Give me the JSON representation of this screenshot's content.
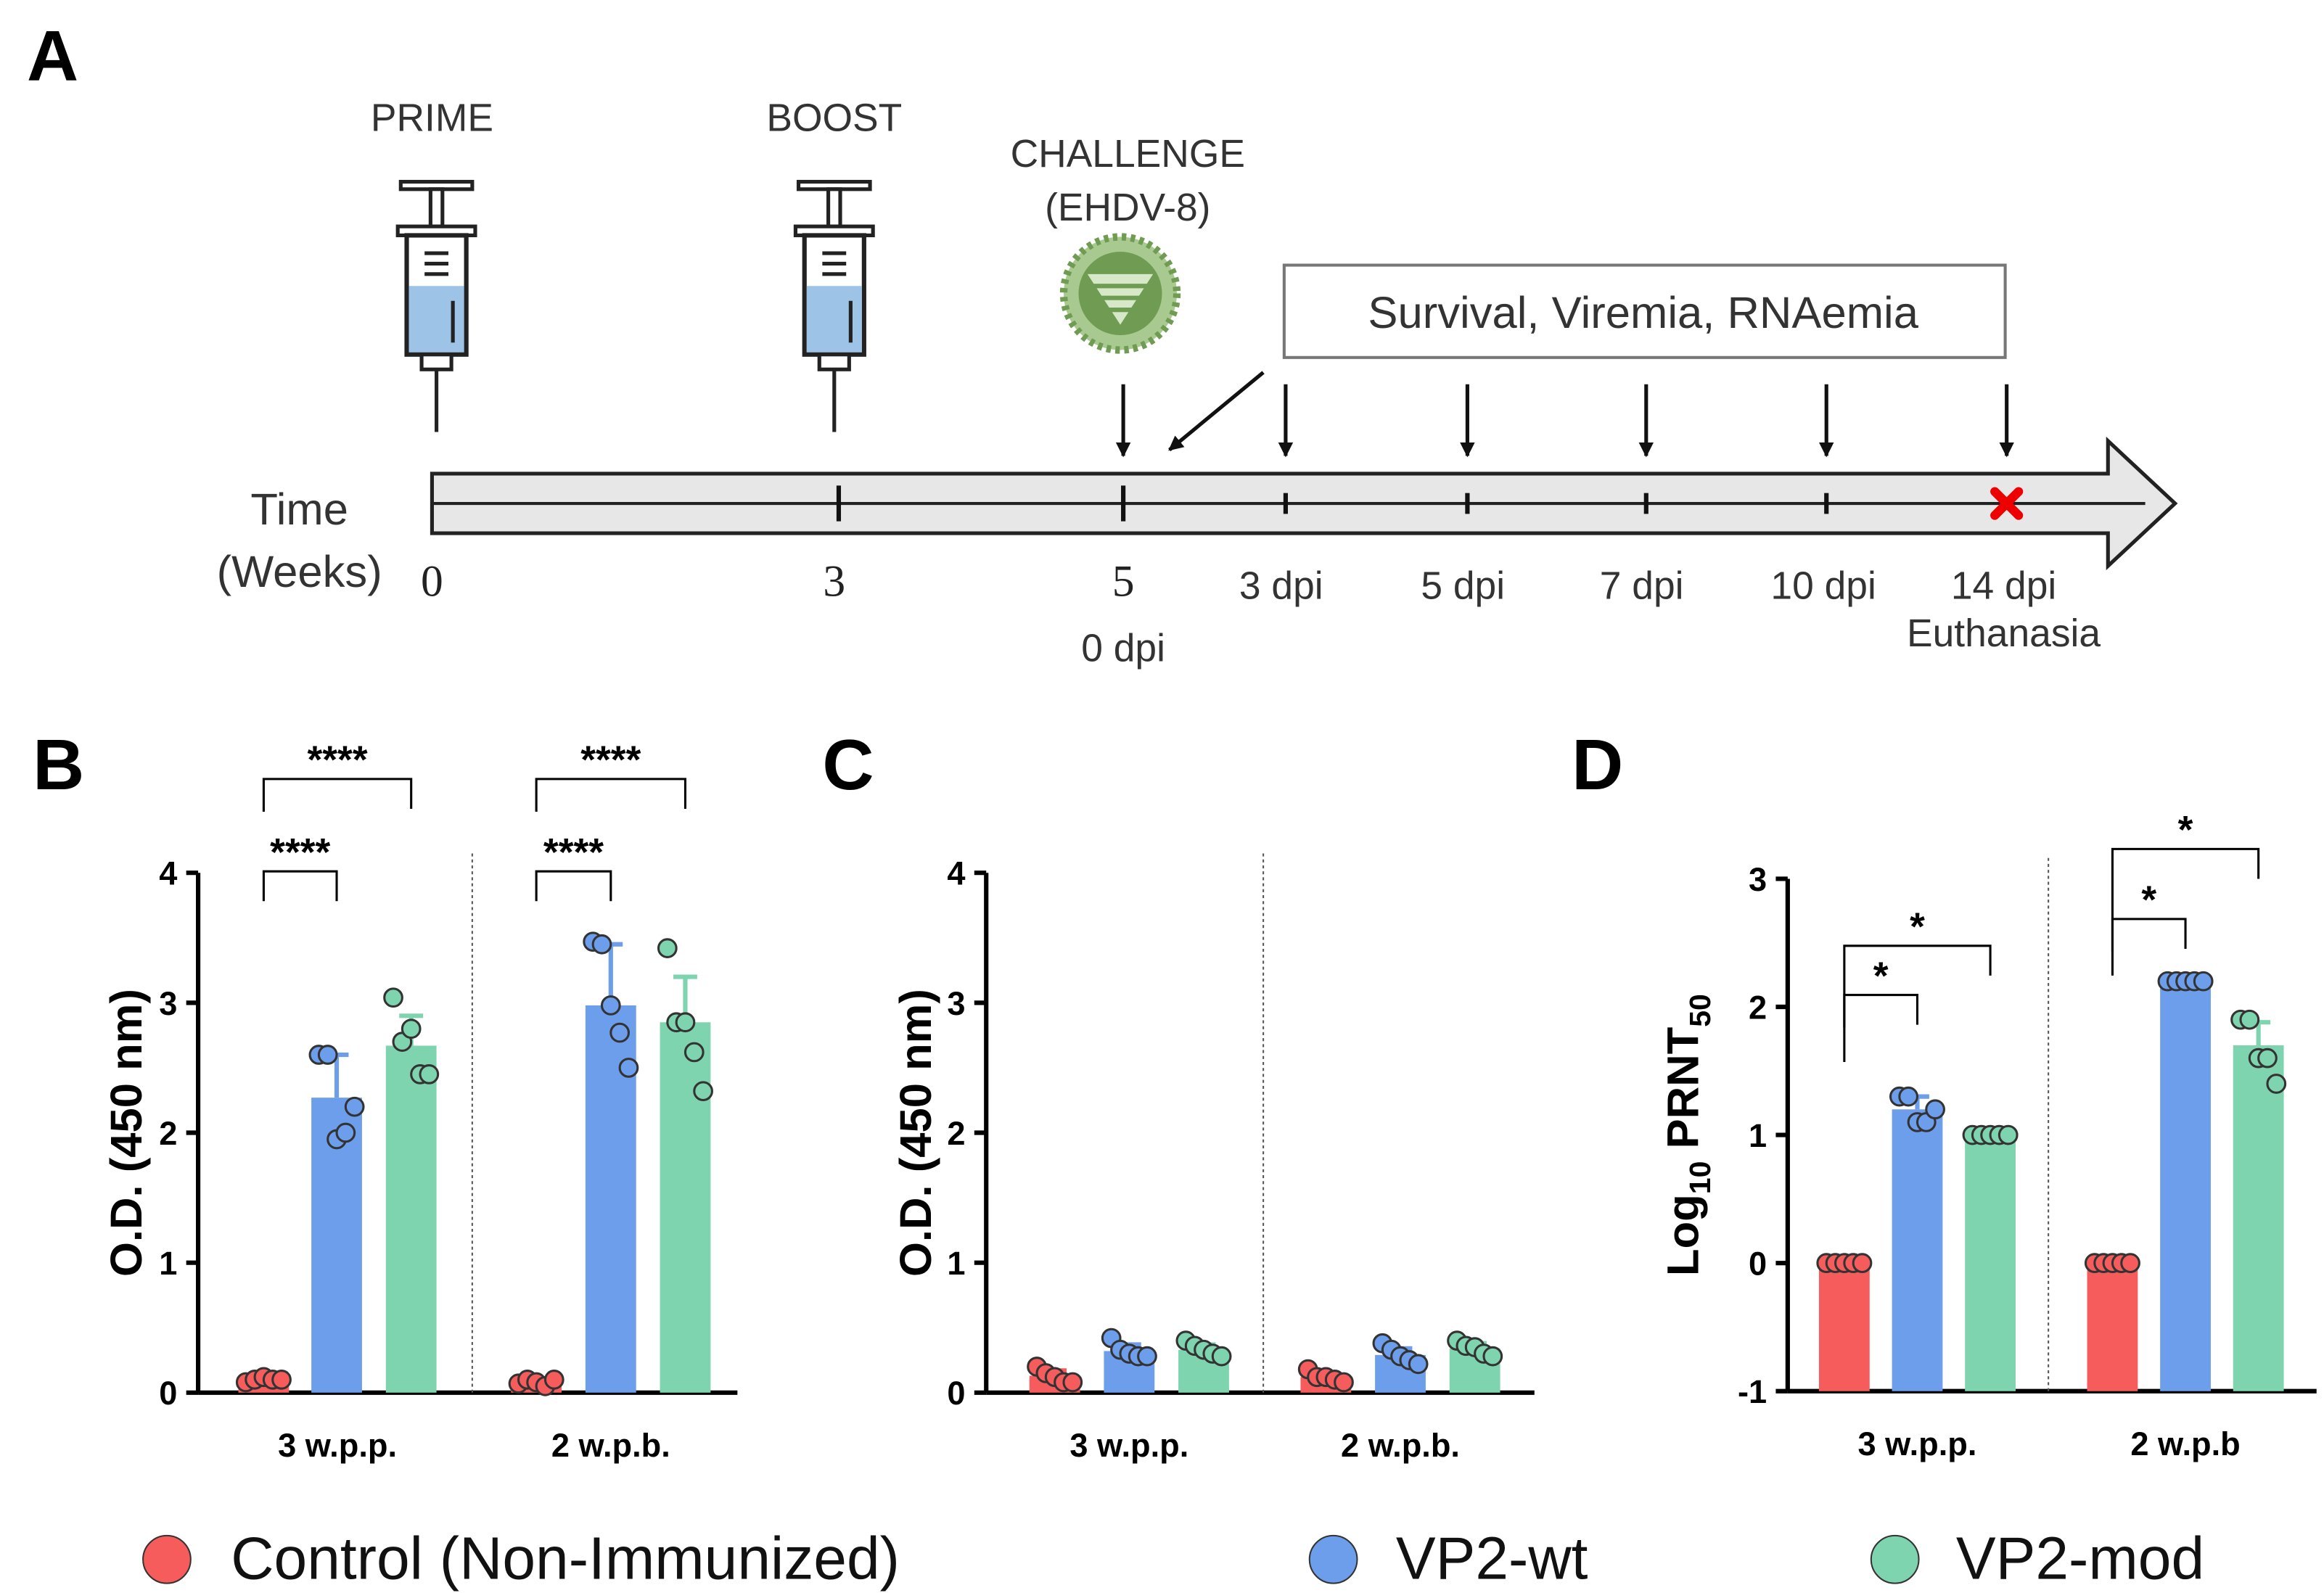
{
  "panel_labels": [
    "A",
    "B",
    "C",
    "D"
  ],
  "timeline": {
    "events": [
      {
        "label": "PRIME"
      },
      {
        "label": "BOOST"
      },
      {
        "label": "CHALLENGE",
        "sublabel": "(EHDV-8)"
      }
    ],
    "box": "Survival, Viremia, RNAemia",
    "axis_label": [
      "Time",
      "(Weeks)"
    ],
    "weeks": [
      "0",
      "3",
      "5"
    ],
    "dpi": [
      "0 dpi",
      "3 dpi",
      "5 dpi",
      "7 dpi",
      "10 dpi",
      "14 dpi"
    ],
    "end_note": "Euthanasia"
  },
  "chart_data": [
    {
      "type": "bar",
      "y_label": "O.D. (450 nm)",
      "categories": [
        "3 w.p.p.",
        "2 w.p.b."
      ],
      "ylim": [
        0,
        4
      ],
      "yticks": [
        0,
        1,
        2,
        3,
        4
      ],
      "series": [
        {
          "name": "Control (Non-Immunized)",
          "color": "#f75c5c",
          "values": [
            0.1,
            0.08
          ],
          "errors": [
            0.02,
            0.02
          ],
          "points": [
            [
              0.08,
              0.1,
              0.12,
              0.1,
              0.1
            ],
            [
              0.07,
              0.1,
              0.08,
              0.05,
              0.1
            ]
          ]
        },
        {
          "name": "VP2-wt",
          "color": "#6d9eeb",
          "values": [
            2.27,
            2.98
          ],
          "errors": [
            0.33,
            0.47
          ],
          "points": [
            [
              2.6,
              2.6,
              1.95,
              2.0,
              2.2
            ],
            [
              3.47,
              3.45,
              2.98,
              2.77,
              2.5
            ]
          ]
        },
        {
          "name": "VP2-mod",
          "color": "#7fd4b0",
          "values": [
            2.67,
            2.85
          ],
          "errors": [
            0.23,
            0.35
          ],
          "points": [
            [
              3.04,
              2.7,
              2.8,
              2.45,
              2.45
            ],
            [
              3.42,
              2.85,
              2.85,
              2.62,
              2.32
            ]
          ]
        }
      ],
      "annotations": [
        {
          "category": 0,
          "series": [
            0,
            1
          ],
          "text": "****"
        },
        {
          "category": 0,
          "series": [
            0,
            2
          ],
          "text": "****"
        },
        {
          "category": 1,
          "series": [
            0,
            1
          ],
          "text": "****"
        },
        {
          "category": 1,
          "series": [
            0,
            2
          ],
          "text": "****"
        }
      ]
    },
    {
      "type": "bar",
      "y_label": "O.D. (450 nm)",
      "categories": [
        "3 w.p.p.",
        "2 w.p.b."
      ],
      "ylim": [
        0,
        4
      ],
      "yticks": [
        0,
        1,
        2,
        3,
        4
      ],
      "series": [
        {
          "name": "Control (Non-Immunized)",
          "color": "#f75c5c",
          "values": [
            0.13,
            0.12
          ],
          "errors": [
            0.04,
            0.03
          ],
          "points": [
            [
              0.2,
              0.15,
              0.12,
              0.08,
              0.08
            ],
            [
              0.18,
              0.12,
              0.12,
              0.1,
              0.08
            ]
          ]
        },
        {
          "name": "VP2-wt",
          "color": "#6d9eeb",
          "values": [
            0.32,
            0.29
          ],
          "errors": [
            0.05,
            0.05
          ],
          "points": [
            [
              0.42,
              0.33,
              0.3,
              0.28,
              0.28
            ],
            [
              0.38,
              0.33,
              0.28,
              0.25,
              0.22
            ]
          ]
        },
        {
          "name": "VP2-mod",
          "color": "#7fd4b0",
          "values": [
            0.33,
            0.34
          ],
          "errors": [
            0.04,
            0.04
          ],
          "points": [
            [
              0.4,
              0.36,
              0.33,
              0.3,
              0.28
            ],
            [
              0.4,
              0.36,
              0.35,
              0.3,
              0.28
            ]
          ]
        }
      ],
      "annotations": []
    },
    {
      "type": "bar",
      "y_label_parts": [
        "Log",
        "10",
        " PRNT",
        "50"
      ],
      "categories": [
        "3 w.p.p.",
        "2 w.p.b"
      ],
      "ylim": [
        -1,
        3
      ],
      "yticks": [
        -1,
        0,
        1,
        2,
        3
      ],
      "series": [
        {
          "name": "Control (Non-Immunized)",
          "color": "#f75c5c",
          "values": [
            0,
            0
          ],
          "errors": [
            0,
            0
          ],
          "points": [
            [
              0,
              0,
              0,
              0,
              0
            ],
            [
              0,
              0,
              0,
              0,
              0
            ]
          ]
        },
        {
          "name": "VP2-wt",
          "color": "#6d9eeb",
          "values": [
            1.2,
            2.2
          ],
          "errors": [
            0.1,
            0.02
          ],
          "points": [
            [
              1.3,
              1.3,
              1.1,
              1.1,
              1.2
            ],
            [
              2.2,
              2.2,
              2.2,
              2.2,
              2.2
            ]
          ]
        },
        {
          "name": "VP2-mod",
          "color": "#7fd4b0",
          "values": [
            1.0,
            1.7
          ],
          "errors": [
            0,
            0.18
          ],
          "points": [
            [
              1,
              1,
              1,
              1,
              1
            ],
            [
              1.9,
              1.9,
              1.6,
              1.6,
              1.4
            ]
          ]
        }
      ],
      "annotations": [
        {
          "category": 0,
          "series": [
            0,
            1
          ],
          "text": "*"
        },
        {
          "category": 0,
          "series": [
            0,
            2
          ],
          "text": "*"
        },
        {
          "category": 1,
          "series": [
            0,
            1
          ],
          "text": "*"
        },
        {
          "category": 1,
          "series": [
            0,
            2
          ],
          "text": "*"
        }
      ]
    }
  ]
}
